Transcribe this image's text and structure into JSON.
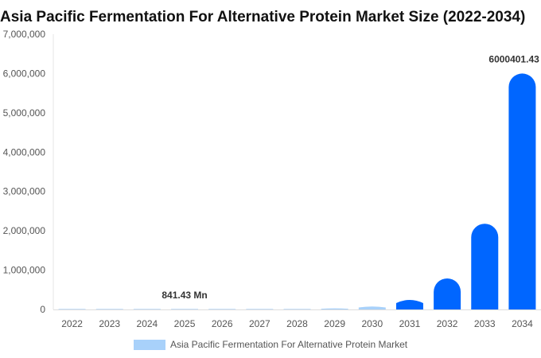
{
  "chart_data": {
    "type": "bar",
    "title": "Asia Pacific Fermentation For Alternative Protein Market Size (2022-2034)",
    "categories": [
      "2022",
      "2023",
      "2024",
      "2025",
      "2026",
      "2027",
      "2028",
      "2029",
      "2030",
      "2031",
      "2032",
      "2033",
      "2034"
    ],
    "series": [
      {
        "name": "Asia Pacific Fermentation For Alternative Protein Market",
        "values": [
          120,
          250,
          450,
          841.43,
          2000,
          5000,
          12000,
          30000,
          85000,
          270000,
          790000,
          2180000,
          6000401.43
        ]
      }
    ],
    "ylim": [
      0,
      7000000
    ],
    "yticks": [
      "0",
      "1,000,000",
      "2,000,000",
      "3,000,000",
      "4,000,000",
      "5,000,000",
      "6,000,000",
      "7,000,000"
    ],
    "data_labels": [
      {
        "category": "2025",
        "text": "841.43 Mn"
      },
      {
        "category": "2034",
        "text": "6000401.43 Mn"
      }
    ],
    "legend_position": "bottom",
    "grid": false,
    "colors": {
      "bar_main": "#0066ff",
      "bar_light": "#a8d1fa",
      "legend_swatch": "#a8d1fa"
    }
  }
}
